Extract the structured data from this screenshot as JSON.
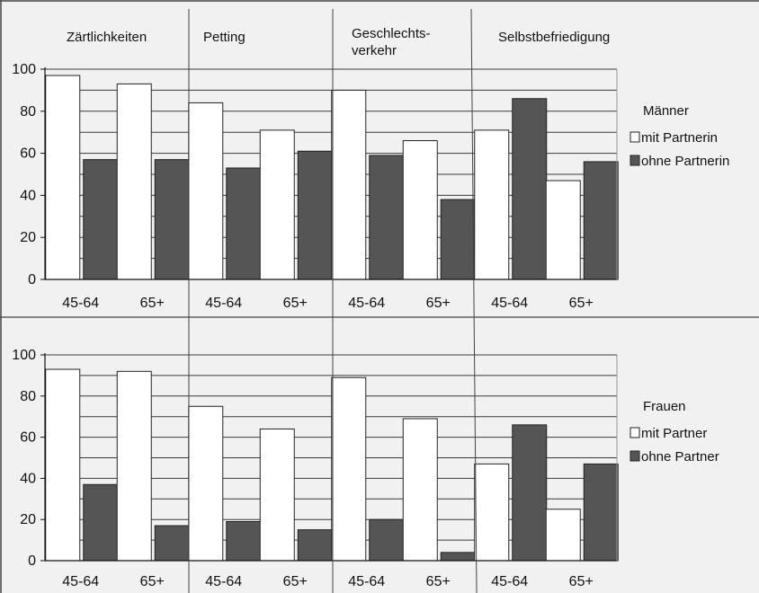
{
  "chart_data": [
    {
      "type": "bar",
      "panel": "top",
      "legend_title": "Männer",
      "sections": [
        "Zärtlichkeiten",
        "Petting",
        "Geschlechts-\nverkehr",
        "Selbstbefriedigung"
      ],
      "categories": [
        "45-64",
        "65+",
        "45-64",
        "65+",
        "45-64",
        "65+",
        "45-64",
        "65+"
      ],
      "series": [
        {
          "name": "mit Partnerin",
          "color": "#ffffff",
          "values": [
            97,
            93,
            84,
            71,
            90,
            66,
            71,
            47
          ]
        },
        {
          "name": "ohne Partnerin",
          "color": "#555555",
          "values": [
            57,
            57,
            53,
            61,
            59,
            38,
            86,
            56
          ]
        }
      ],
      "ylim": [
        0,
        100
      ],
      "yticks": [
        0,
        20,
        40,
        60,
        80,
        100
      ],
      "grid": true,
      "legend_position": "right"
    },
    {
      "type": "bar",
      "panel": "bottom",
      "legend_title": "Frauen",
      "sections": [
        "Zärtlichkeiten",
        "Petting",
        "Geschlechts-\nverkehr",
        "Selbstbefriedigung"
      ],
      "categories": [
        "45-64",
        "65+",
        "45-64",
        "65+",
        "45-64",
        "65+",
        "45-64",
        "65+"
      ],
      "series": [
        {
          "name": "mit Partner",
          "color": "#ffffff",
          "values": [
            93,
            92,
            75,
            64,
            89,
            69,
            47,
            25
          ]
        },
        {
          "name": "ohne Partner",
          "color": "#555555",
          "values": [
            37,
            17,
            19,
            15,
            20,
            4,
            66,
            47
          ]
        }
      ],
      "ylim": [
        0,
        100
      ],
      "yticks": [
        0,
        20,
        40,
        60,
        80,
        100
      ],
      "grid": true,
      "legend_position": "right"
    }
  ]
}
